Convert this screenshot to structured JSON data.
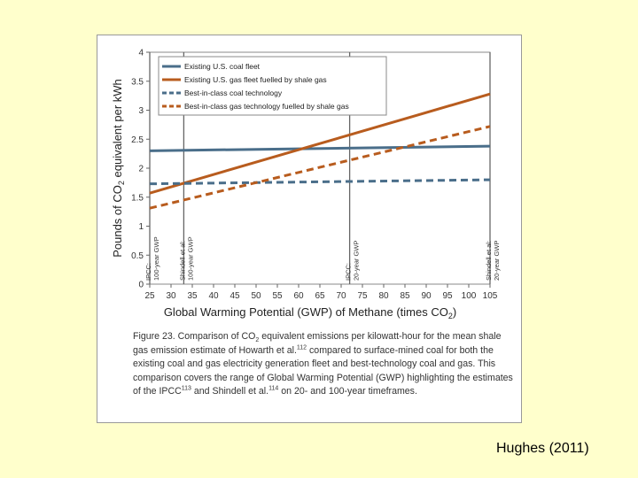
{
  "chart_data": {
    "type": "line",
    "x_axis": {
      "label_main": "Global Warming Potential (GWP) of Methane (times CO",
      "label_sub": "2",
      "label_end": ")",
      "range": [
        25,
        105
      ],
      "ticks": [
        25,
        30,
        35,
        40,
        45,
        50,
        55,
        60,
        65,
        70,
        75,
        80,
        85,
        90,
        95,
        100,
        105
      ]
    },
    "y_axis": {
      "label_main": "Pounds of CO",
      "label_sub": "2",
      "label_end": " equivalent per kWh",
      "range": [
        0,
        4
      ],
      "ticks": [
        0,
        0.5,
        1,
        1.5,
        2,
        2.5,
        3,
        3.5,
        4
      ],
      "tick_labels": [
        "0",
        "0.5",
        "1",
        "1.5",
        "2",
        "2.5",
        "3",
        "3.5",
        "4"
      ]
    },
    "series": [
      {
        "name": "Existing U.S. coal fleet",
        "color": "#4a6e8a",
        "style": "solid",
        "x": [
          25,
          105
        ],
        "y": [
          2.3,
          2.38
        ]
      },
      {
        "name": "Existing U.S. gas fleet fuelled by shale gas",
        "color": "#b85c1e",
        "style": "solid",
        "x": [
          25,
          105
        ],
        "y": [
          1.57,
          3.28
        ]
      },
      {
        "name": "Best-in-class coal technology",
        "color": "#4a6e8a",
        "style": "dashed",
        "x": [
          25,
          105
        ],
        "y": [
          1.73,
          1.8
        ]
      },
      {
        "name": "Best-in-class gas technology fuelled by shale gas",
        "color": "#b85c1e",
        "style": "dashed",
        "x": [
          25,
          105
        ],
        "y": [
          1.31,
          2.72
        ]
      }
    ],
    "reference_lines": [
      {
        "x": 25,
        "label_line1": "IPCC:",
        "label_line2": "100-year GWP"
      },
      {
        "x": 33,
        "label_line1": "Shindell et al:",
        "label_line2": "100-year GWP"
      },
      {
        "x": 72,
        "label_line1": "IPCC:",
        "label_line2": "20-year GWP"
      },
      {
        "x": 105,
        "label_line1": "Shindell et al:",
        "label_line2": "20-year GWP"
      }
    ],
    "legend_position": "top-left",
    "grid": false
  },
  "caption": {
    "p1": "Figure 23. Comparison of CO",
    "sub1": "2",
    "p2": " equivalent emissions per kilowatt-hour for the mean shale gas emission estimate of Howarth et al.",
    "sup1": "112",
    "p3": " compared to surface-mined coal for both the existing coal and gas electricity generation fleet and best-technology coal and gas. This comparison covers the range of Global Warming Potential (GWP) highlighting the estimates of the IPCC",
    "sup2": "113",
    "p4": " and Shindell et al.",
    "sup3": "114",
    "p5": " on 20- and 100-year timeframes."
  },
  "citation": "Hughes (2011)"
}
